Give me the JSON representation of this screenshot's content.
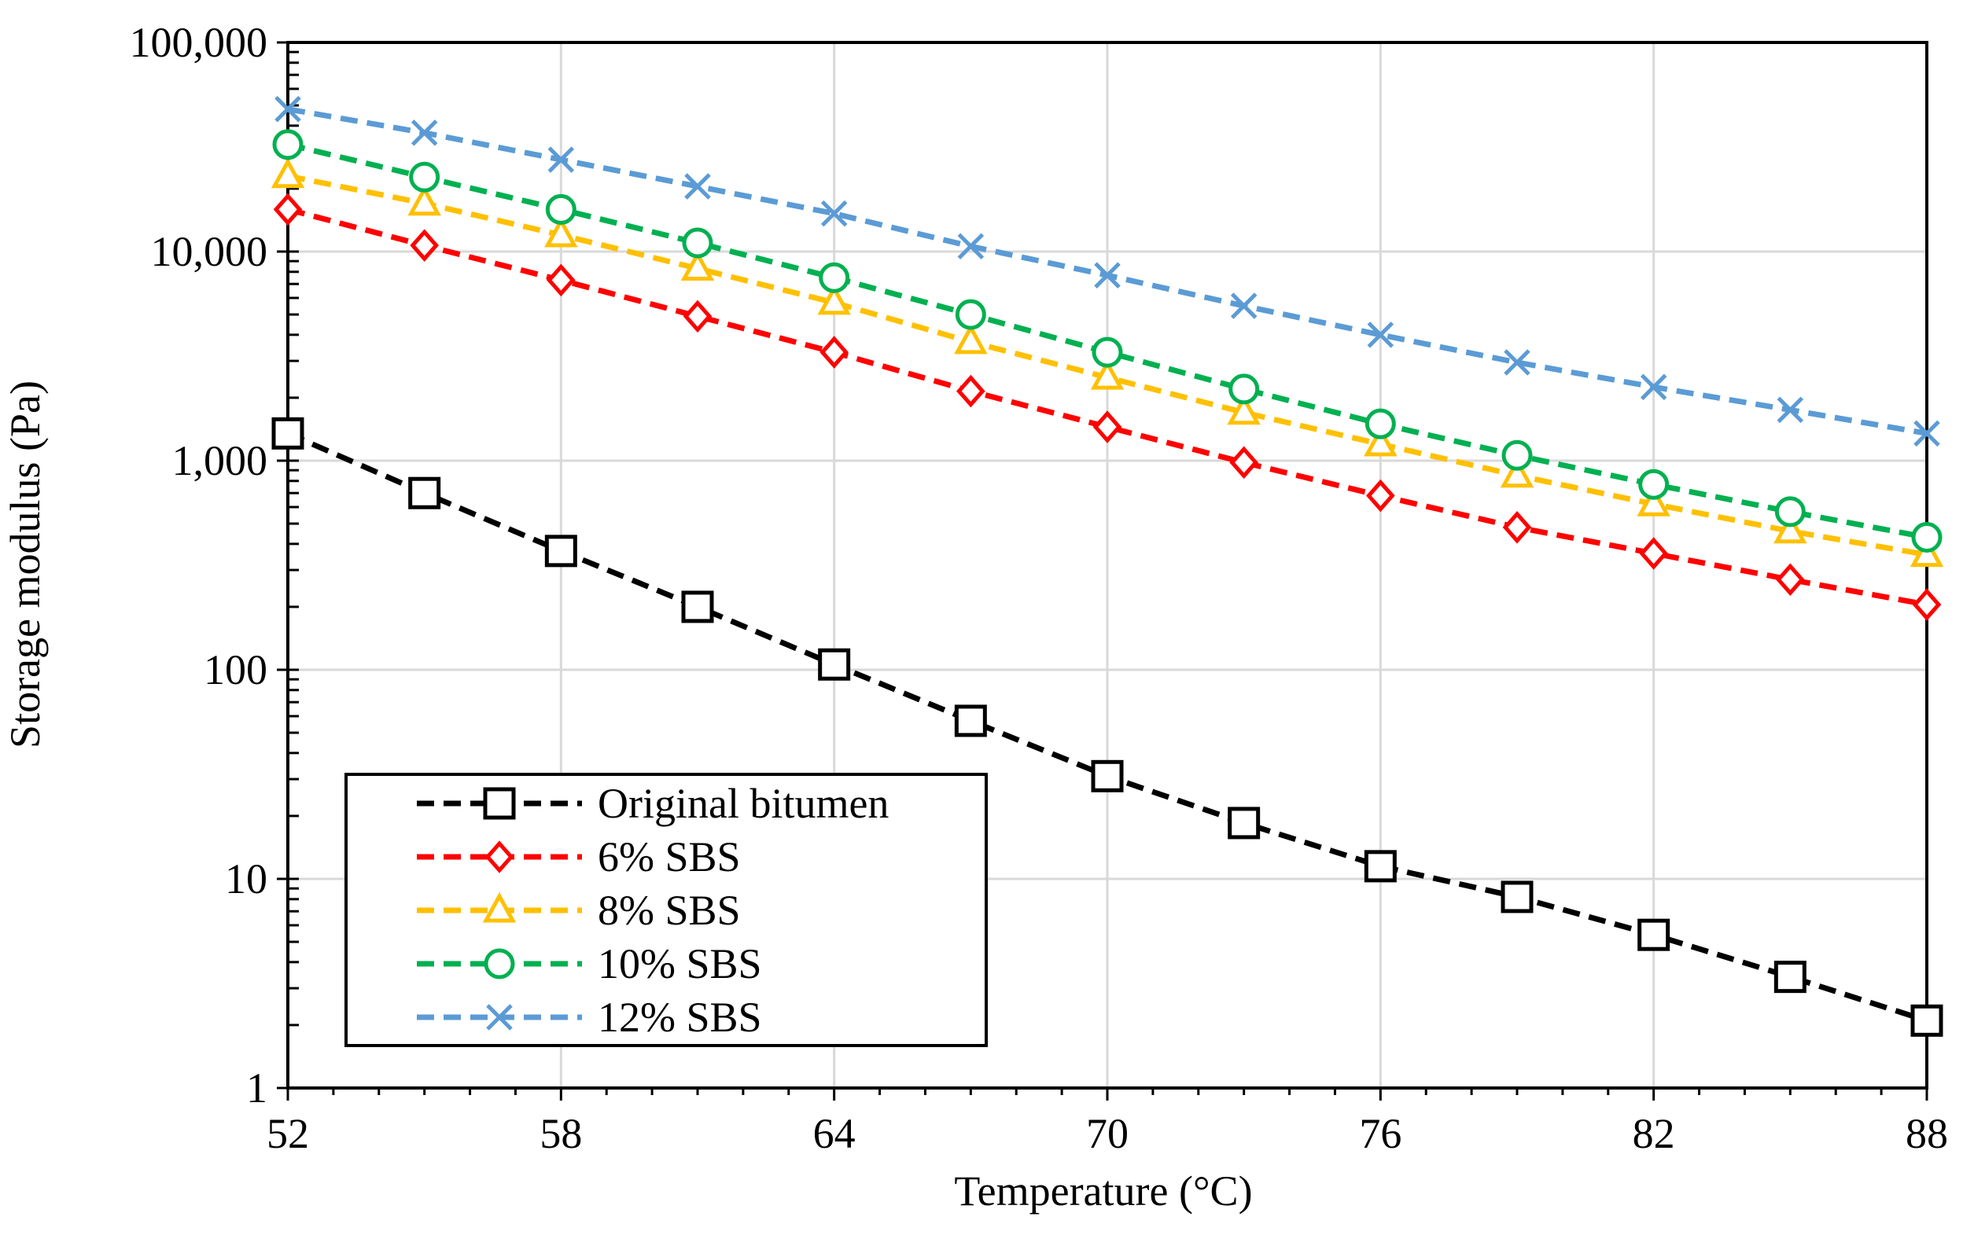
{
  "chart_data": {
    "type": "line",
    "title": "",
    "xlabel": "Temperature (°C)",
    "ylabel": "Storage modulus (Pa)",
    "xlim": [
      52,
      88
    ],
    "ylim": [
      1,
      100000
    ],
    "yscale": "log",
    "grid": true,
    "legend_position": "bottom-left",
    "x_ticks": [
      52,
      58,
      64,
      70,
      76,
      82,
      88
    ],
    "x_tick_labels": [
      "52",
      "58",
      "64",
      "70",
      "76",
      "82",
      "88"
    ],
    "y_ticks": [
      1,
      10,
      100,
      1000,
      10000,
      100000
    ],
    "y_tick_labels": [
      "1",
      "10",
      "100",
      "1,000",
      "10,000",
      "100,000"
    ],
    "x": [
      52,
      55,
      58,
      61,
      64,
      67,
      70,
      73,
      76,
      79,
      82,
      85,
      88
    ],
    "series": [
      {
        "name": "Original bitumen",
        "color": "#000000",
        "marker": "square",
        "values": [
          1350,
          700,
          370,
          200,
          106,
          57,
          31,
          18.5,
          11.5,
          8.2,
          5.4,
          3.4,
          2.1
        ]
      },
      {
        "name": "6% SBS",
        "color": "#ff0000",
        "marker": "diamond",
        "values": [
          15900,
          10700,
          7300,
          4900,
          3300,
          2150,
          1450,
          980,
          680,
          480,
          360,
          270,
          205
        ]
      },
      {
        "name": "8% SBS",
        "color": "#ffc000",
        "marker": "triangle",
        "values": [
          23000,
          17000,
          12000,
          8300,
          5700,
          3700,
          2500,
          1700,
          1200,
          850,
          620,
          460,
          355
        ]
      },
      {
        "name": "10% SBS",
        "color": "#00b050",
        "marker": "circle",
        "values": [
          32500,
          22700,
          15900,
          11000,
          7500,
          5000,
          3300,
          2200,
          1500,
          1060,
          770,
          570,
          430
        ]
      },
      {
        "name": "12% SBS",
        "color": "#5b9bd5",
        "marker": "x",
        "values": [
          48000,
          37000,
          27500,
          20500,
          15200,
          10600,
          7700,
          5500,
          4000,
          2950,
          2250,
          1750,
          1350
        ]
      }
    ]
  }
}
